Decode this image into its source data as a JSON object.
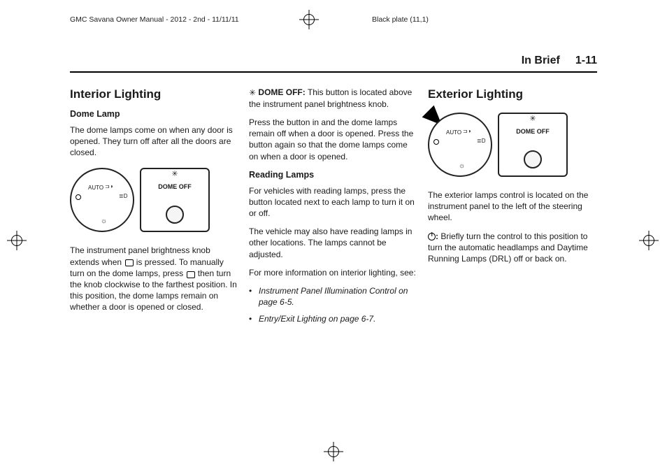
{
  "header": {
    "left": "GMC Savana Owner Manual - 2012 - 2nd - 11/11/11",
    "right": "Black plate (11,1)"
  },
  "running_head": {
    "section": "In Brief",
    "page": "1-11"
  },
  "col1": {
    "h2": "Interior Lighting",
    "h3": "Dome Lamp",
    "p1": "The dome lamps come on when any door is opened. They turn off after all the doors are closed.",
    "fig": {
      "dial_auto": "AUTO",
      "dome_label": "DOME OFF"
    },
    "p2a": "The instrument panel brightness knob extends when ",
    "p2b": " is pressed. To manually turn on the dome lamps, press ",
    "p2c": " then turn the knob clockwise to the farthest position. In this position, the dome lamps remain on whether a door is opened or closed."
  },
  "col2": {
    "lead_label": "DOME OFF:",
    "p1": "This button is located above the instrument panel brightness knob.",
    "p2": "Press the button in and the dome lamps remain off when a door is opened. Press the button again so that the dome lamps come on when a door is opened.",
    "h3": "Reading Lamps",
    "p3": "For vehicles with reading lamps, press the button located next to each lamp to turn it on or off.",
    "p4": "The vehicle may also have reading lamps in other locations. The lamps cannot be adjusted.",
    "p5": "For more information on interior lighting, see:",
    "ref1": "Instrument Panel Illumination Control on page 6‑5.",
    "ref2": "Entry/Exit Lighting on page 6‑7."
  },
  "col3": {
    "h2": "Exterior Lighting",
    "fig": {
      "dial_auto": "AUTO",
      "dome_label": "DOME OFF"
    },
    "p1": "The exterior lamps control is located on the instrument panel to the left of the steering wheel.",
    "p2": "Briefly turn the control to this position to turn the automatic headlamps and Daytime Running Lamps (DRL) off or back on.",
    "colon": ":"
  }
}
